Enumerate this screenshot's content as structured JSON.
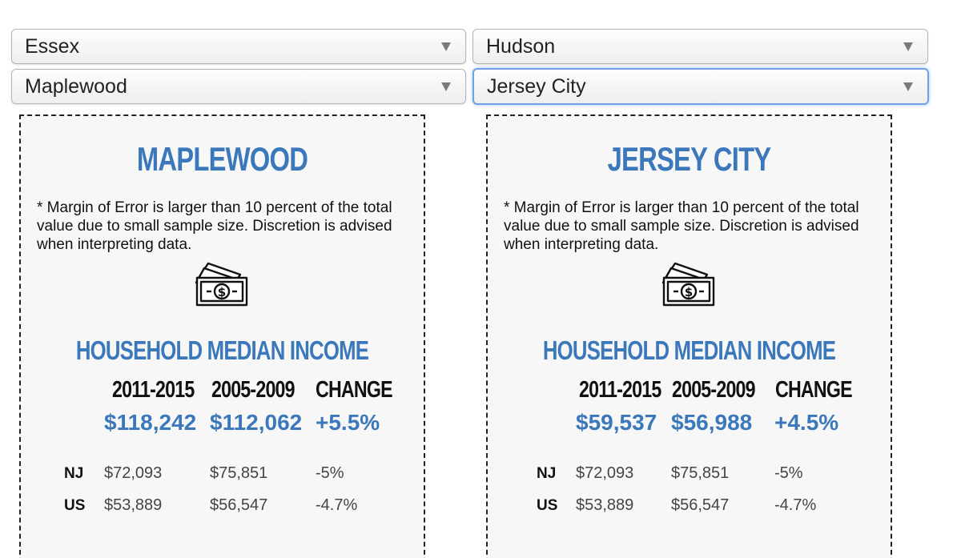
{
  "selects": {
    "left_county": "Essex",
    "right_county": "Hudson",
    "left_town": "Maplewood",
    "right_town": "Jersey City"
  },
  "cards": {
    "left": {
      "title": "MAPLEWOOD",
      "note": "* Margin of Error is larger than 10 percent of the total value due to small sample size. Discretion is advised when interpreting data.",
      "section_title": "HOUSEHOLD MEDIAN INCOME",
      "headers": [
        "2011-2015",
        "2005-2009",
        "CHANGE"
      ],
      "values": [
        "$118,242",
        "$112,062",
        "+5.5%"
      ],
      "comparisons": [
        {
          "label": "NJ",
          "values": [
            "$72,093",
            "$75,851",
            "-5%"
          ]
        },
        {
          "label": "US",
          "values": [
            "$53,889",
            "$56,547",
            "-4.7%"
          ]
        }
      ]
    },
    "right": {
      "title": "JERSEY CITY",
      "note": "* Margin of Error is larger than 10 percent of the total value due to small sample size. Discretion is advised when interpreting data.",
      "section_title": "HOUSEHOLD MEDIAN INCOME",
      "headers": [
        "2011-2015",
        "2005-2009",
        "CHANGE"
      ],
      "values": [
        "$59,537",
        "$56,988",
        "+4.5%"
      ],
      "comparisons": [
        {
          "label": "NJ",
          "values": [
            "$72,093",
            "$75,851",
            "-5%"
          ]
        },
        {
          "label": "US",
          "values": [
            "$53,889",
            "$56,547",
            "-4.7%"
          ]
        }
      ]
    }
  },
  "icons": {
    "money": "money-bills-icon",
    "caret": "caret-down-icon"
  },
  "colors": {
    "accent_blue": "#3b78bb",
    "focus_blue": "#6ea2e6"
  }
}
